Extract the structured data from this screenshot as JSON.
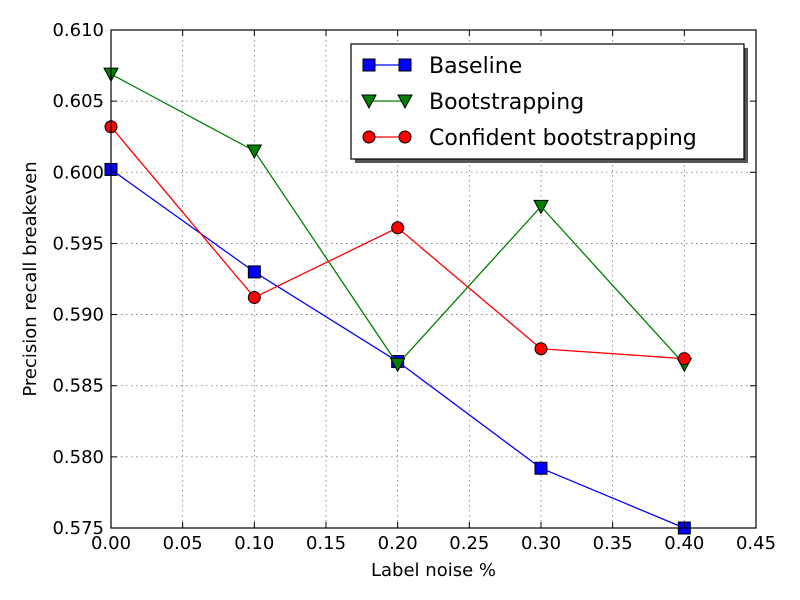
{
  "chart_data": {
    "type": "line",
    "title": "",
    "xlabel": "Label noise %",
    "ylabel": "Precision recall breakeven",
    "xlim": [
      0.0,
      0.45
    ],
    "ylim": [
      0.575,
      0.61
    ],
    "xticks": [
      "0.00",
      "0.05",
      "0.10",
      "0.15",
      "0.20",
      "0.25",
      "0.30",
      "0.35",
      "0.40",
      "0.45"
    ],
    "yticks": [
      "0.575",
      "0.580",
      "0.585",
      "0.590",
      "0.595",
      "0.600",
      "0.605",
      "0.610"
    ],
    "grid": true,
    "legend_position": "top-right",
    "x": [
      0.0,
      0.1,
      0.2,
      0.3,
      0.4
    ],
    "series": [
      {
        "name": "Baseline",
        "color": "#0000ff",
        "marker": "square",
        "values": [
          0.6002,
          0.593,
          0.5867,
          0.5792,
          0.575
        ]
      },
      {
        "name": "Bootstrapping",
        "color": "#008000",
        "marker": "triangle-down",
        "values": [
          0.6069,
          0.6015,
          0.5865,
          0.5976,
          0.5865
        ]
      },
      {
        "name": "Confident bootstrapping",
        "color": "#ff0000",
        "marker": "circle",
        "values": [
          0.6032,
          0.5912,
          0.5961,
          0.5876,
          0.5869
        ]
      }
    ]
  }
}
